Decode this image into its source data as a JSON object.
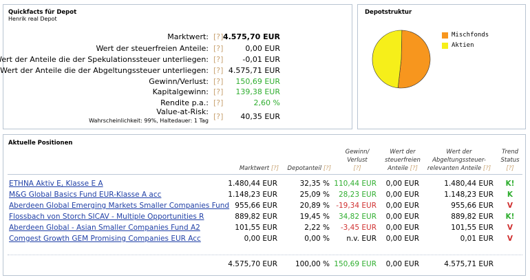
{
  "quickfacts": {
    "title": "Quickfacts für Depot",
    "subtitle": "Henrik real Depot",
    "help": "[?]",
    "rows": [
      {
        "label": "Marktwert:",
        "value": "4.575,70 EUR"
      },
      {
        "label": "Wert der steuerfreien Anteile:",
        "value": "0,00 EUR"
      },
      {
        "label": "Wert der Anteile die der Spekulationssteuer unterliegen:",
        "value": "-0,01 EUR"
      },
      {
        "label": "Wert der Anteile die der Abgeltungssteuer unterliegen:",
        "value": "4.575,71 EUR"
      },
      {
        "label": "Gewinn/Verlust:",
        "value": "150,69 EUR"
      },
      {
        "label": "Kapitalgewinn:",
        "value": "139,38 EUR"
      },
      {
        "label": "Rendite p.a.:",
        "value": "2,60 %"
      },
      {
        "label": "Value-at-Risk:",
        "sublabel": "Wahrscheinlichkeit: 99%, Haltedauer: 1 Tag",
        "value": "40,35 EUR"
      }
    ]
  },
  "depotstruktur": {
    "title": "Depotstruktur",
    "legend": [
      {
        "name": "Mischfonds",
        "color": "#f7961e"
      },
      {
        "name": "Aktien",
        "color": "#f6ef1a"
      }
    ],
    "chart_data": {
      "type": "pie",
      "labels": [
        "Mischfonds",
        "Aktien"
      ],
      "values": [
        51.5,
        48.5
      ]
    }
  },
  "positions": {
    "title": "Aktuelle Positionen",
    "headers": {
      "marktwert": "Marktwert",
      "depotanteil": "Depotanteil",
      "gewinn1": "Gewinn/",
      "gewinn2": "Verlust",
      "steuerfrei1": "Wert der",
      "steuerfrei2": "steuerfreien",
      "steuerfrei3": "Anteile",
      "abgelt1": "Wert der",
      "abgelt2": "Abgeltungssteuer-",
      "abgelt3": "relevanten Anteile",
      "trend1": "Trend",
      "trend2": "Status",
      "help": "[?]"
    },
    "rows": [
      {
        "name": "ETHNA Aktiv E, Klasse E A",
        "marktwert": "1.480,44 EUR",
        "anteil": "32,35 %",
        "gewinn": "110,44 EUR",
        "gcolor": "green",
        "steuerfrei": "0,00 EUR",
        "abgelt": "1.480,44 EUR",
        "trend": "K!",
        "tcolor": "green"
      },
      {
        "name": "M&G Global Basics Fund EUR-Klasse A acc",
        "marktwert": "1.148,23 EUR",
        "anteil": "25,09 %",
        "gewinn": "28,23 EUR",
        "gcolor": "green",
        "steuerfrei": "0,00 EUR",
        "abgelt": "1.148,23 EUR",
        "trend": "K",
        "tcolor": "green"
      },
      {
        "name": "Aberdeen Global Emerging Markets Smaller Companies Fund",
        "marktwert": "955,66 EUR",
        "anteil": "20,89 %",
        "gewinn": "-19,34 EUR",
        "gcolor": "red",
        "steuerfrei": "0,00 EUR",
        "abgelt": "955,66 EUR",
        "trend": "V",
        "tcolor": "red"
      },
      {
        "name": "Flossbach von Storch SICAV - Multiple Opportunities R",
        "marktwert": "889,82 EUR",
        "anteil": "19,45 %",
        "gewinn": "34,82 EUR",
        "gcolor": "green",
        "steuerfrei": "0,00 EUR",
        "abgelt": "889,82 EUR",
        "trend": "K!",
        "tcolor": "green"
      },
      {
        "name": "Aberdeen Global - Asian Smaller Companies Fund A2",
        "marktwert": "101,55 EUR",
        "anteil": "2,22 %",
        "gewinn": "-3,45 EUR",
        "gcolor": "red",
        "steuerfrei": "0,00 EUR",
        "abgelt": "101,55 EUR",
        "trend": "V",
        "tcolor": "red"
      },
      {
        "name": "Comgest Growth GEM Promising Companies EUR Acc",
        "marktwert": "0,00 EUR",
        "anteil": "0,00 %",
        "gewinn": "n.v. EUR",
        "gcolor": "black",
        "steuerfrei": "0,00 EUR",
        "abgelt": "0,01 EUR",
        "trend": "V",
        "tcolor": "red"
      }
    ],
    "totals": {
      "marktwert": "4.575,70 EUR",
      "anteil": "100,00 %",
      "gewinn": "150,69 EUR",
      "steuerfrei": "0,00 EUR",
      "abgelt": "4.575,71 EUR"
    }
  }
}
